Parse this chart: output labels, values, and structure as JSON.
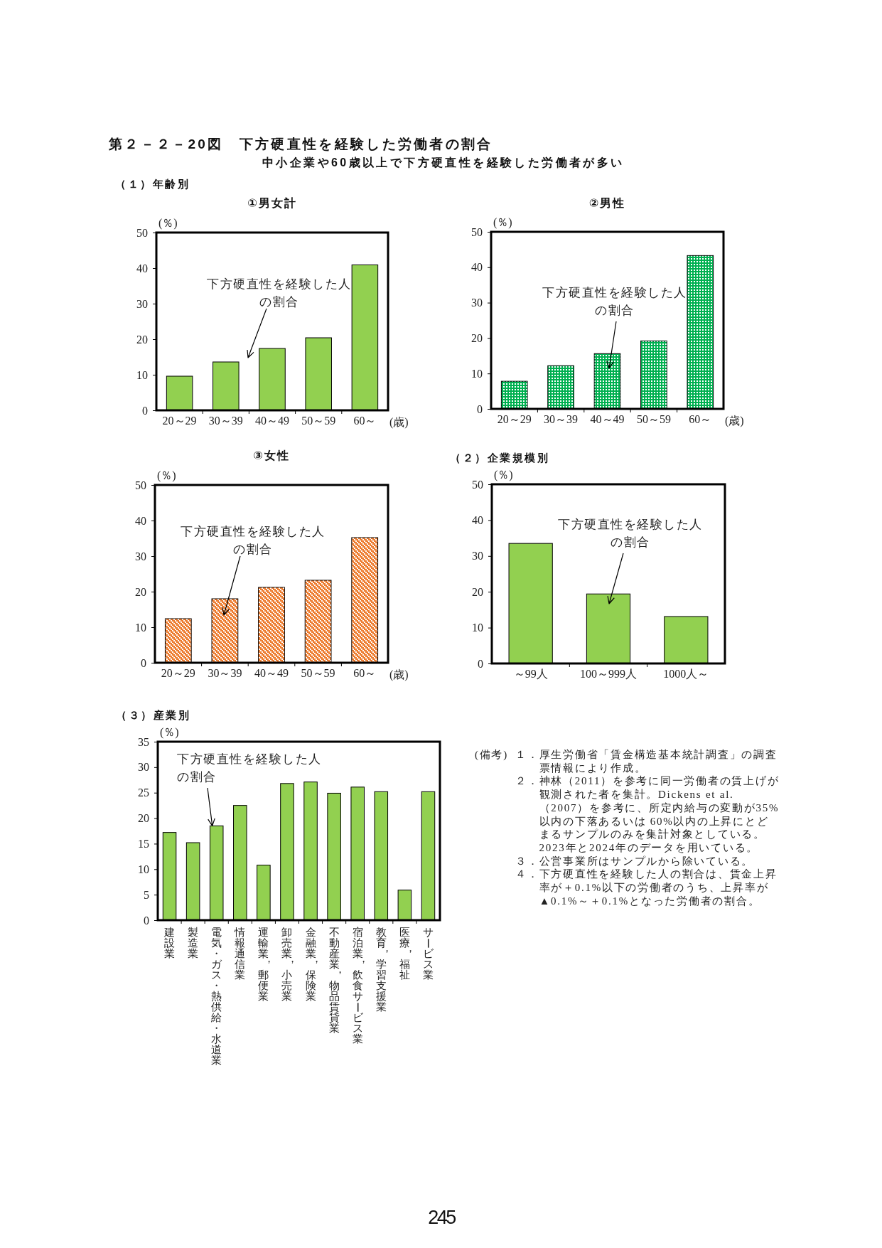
{
  "chart_data": [
    {
      "type": "other",
      "title": "第２－２－20図　下方硬直性を経験した労働者の割合",
      "subtitle": "中小企業や60歳以上で下方硬直性を経験した労働者が多い",
      "annotations": [
        "（１）年齢別",
        "(備考)",
        "１．厚生労働省「賃金構造基本統計調査」の調査票情報により作成。",
        "２．神林（2011）を参考に同一労働者の賃上げが観測された者を集計。Dickens et al.（2007）を参考に、所定内給与の変動が35%以内の下落あるいは 60%以内の上昇にとどまるサンプルのみを集計対象としている。2023年と2024年のデータを用いている。",
        "３．公営事業所はサンプルから除いている。",
        "４．下方硬直性を経験した人の割合は、賃金上昇率が＋0.1%以下の労働者のうち、上昇率が▲0.1%～＋0.1%となった労働者の割合。",
        "245"
      ]
    },
    {
      "type": "bar",
      "title": "①男女計",
      "categories": [
        "20～29",
        "30～39",
        "40～49",
        "50～59",
        "60～"
      ],
      "values": [
        9.6,
        13.6,
        17.4,
        20.4,
        40.9
      ],
      "color": "#92d050",
      "ylim": [
        0,
        50
      ],
      "yticks": [
        0,
        10,
        20,
        30,
        40,
        50
      ],
      "ylabel": "(％)",
      "xlabel": "(歳)",
      "annotations": [
        "下方硬直性を経験した人の割合"
      ]
    },
    {
      "type": "bar",
      "title": "②男性",
      "categories": [
        "20～29",
        "30～39",
        "40～49",
        "50～59",
        "60～"
      ],
      "values": [
        7.8,
        12.2,
        15.6,
        19.2,
        43.3
      ],
      "color": "#00b050",
      "ylim": [
        0,
        50
      ],
      "yticks": [
        0,
        10,
        20,
        30,
        40,
        50
      ],
      "ylabel": "(％)",
      "xlabel": "(歳)",
      "annotations": [
        "下方硬直性を経験した人の割合"
      ]
    },
    {
      "type": "bar",
      "title": "③女性",
      "categories": [
        "20～29",
        "30～39",
        "40～49",
        "50～59",
        "60～"
      ],
      "values": [
        12.4,
        18,
        21.2,
        23.2,
        35.2
      ],
      "color": "#ed7d31",
      "ylim": [
        0,
        50
      ],
      "yticks": [
        0,
        10,
        20,
        30,
        40,
        50
      ],
      "ylabel": "(％)",
      "xlabel": "(歳)",
      "annotations": [
        "下方硬直性を経験した人の割合"
      ]
    },
    {
      "type": "bar",
      "title": "（２）企業規模別",
      "categories": [
        "～99人",
        "100～999人",
        "1000人～"
      ],
      "values": [
        33.5,
        19.4,
        13.1
      ],
      "color": "#92d050",
      "ylim": [
        0,
        50
      ],
      "yticks": [
        0,
        10,
        20,
        30,
        40,
        50
      ],
      "ylabel": "(％)",
      "annotations": [
        "下方硬直性を経験した人の割合"
      ]
    },
    {
      "type": "bar",
      "title": "（３）産業別",
      "categories": [
        "建設業",
        "製造業",
        "電気・ガス・熱供給・水道業",
        "情報通信業",
        "運輸業，郵便業",
        "卸売業，小売業",
        "金融業，保険業",
        "不動産業，物品賃貸業",
        "宿泊業，飲食サービス業",
        "教育，学習支援業",
        "医療，福祉",
        "サービス業"
      ],
      "values": [
        17.2,
        15.2,
        18.5,
        22.5,
        10.8,
        26.8,
        27.1,
        24.9,
        26.1,
        25.2,
        5.9,
        25.2
      ],
      "color": "#92d050",
      "ylim": [
        0,
        35
      ],
      "yticks": [
        0,
        5,
        10,
        15,
        20,
        25,
        30,
        35
      ],
      "ylabel": "(％)",
      "annotations": [
        {
          "text": "下方硬直性を経験した人の割合",
          "x": "電気・ガス・熱供給・水道業",
          "y": 18.5
        }
      ]
    }
  ]
}
